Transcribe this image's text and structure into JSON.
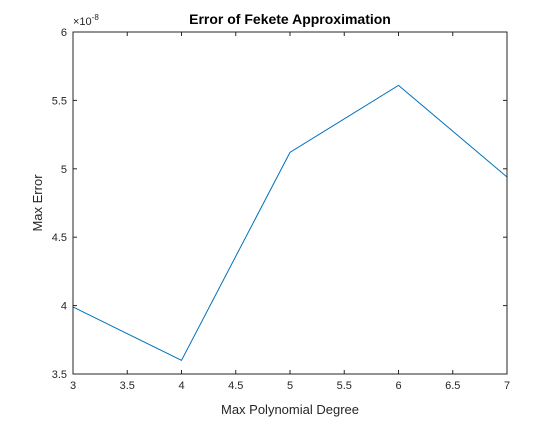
{
  "chart_data": {
    "type": "line",
    "title": "Error of Fekete Approximation",
    "xlabel": "Max Polynomial Degree",
    "ylabel": "Max Error",
    "y_exponent_base": "×10",
    "y_exponent": "-8",
    "xlim": [
      3,
      7
    ],
    "ylim": [
      3.5,
      6
    ],
    "xticks": [
      "3",
      "3.5",
      "4",
      "4.5",
      "5",
      "5.5",
      "6",
      "6.5",
      "7"
    ],
    "yticks": [
      "3.5",
      "4",
      "4.5",
      "5",
      "5.5",
      "6"
    ],
    "grid": false,
    "box": true,
    "series": [
      {
        "x": [
          3,
          4,
          5,
          6,
          7
        ],
        "y": [
          3.99,
          3.6,
          5.12,
          5.61,
          4.94
        ],
        "color": "#0072BD"
      }
    ]
  }
}
